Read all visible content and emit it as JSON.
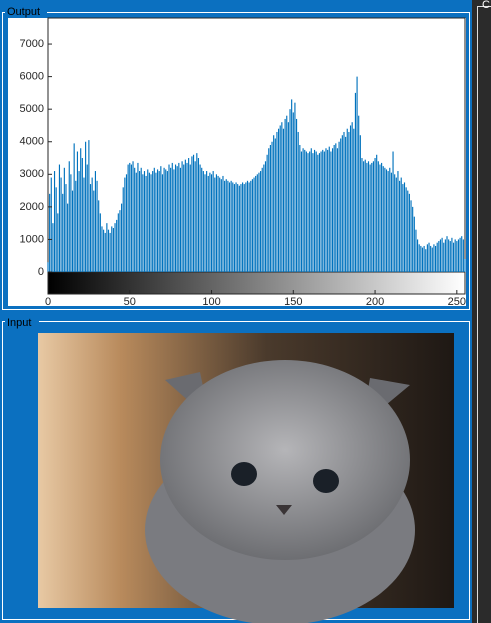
{
  "output_panel": {
    "title": "Output"
  },
  "input_panel": {
    "title": "Input"
  },
  "side_panel": {
    "title": "C"
  },
  "chart_data": {
    "type": "bar",
    "color": "#0072bd",
    "xlim": [
      0,
      255
    ],
    "xticks": [
      0,
      50,
      100,
      150,
      200,
      250
    ],
    "ylim": [
      0,
      7800
    ],
    "yticks": [
      0,
      1000,
      2000,
      3000,
      4000,
      5000,
      6000,
      7000
    ],
    "values": [
      300,
      2400,
      2900,
      1500,
      3100,
      2600,
      1800,
      3300,
      2900,
      2400,
      3200,
      2700,
      2100,
      3400,
      3000,
      2500,
      3950,
      2800,
      3700,
      3100,
      3800,
      3500,
      2900,
      4000,
      3300,
      4050,
      2700,
      2900,
      2500,
      3100,
      2800,
      2200,
      1800,
      1400,
      1300,
      1200,
      1500,
      1300,
      1200,
      1400,
      1350,
      1500,
      1600,
      1800,
      1900,
      2100,
      2600,
      2900,
      3000,
      3300,
      3350,
      3300,
      3400,
      3200,
      3050,
      3350,
      3100,
      3200,
      3000,
      3100,
      2950,
      3150,
      3050,
      3000,
      3100,
      3200,
      3050,
      3150,
      3100,
      3250,
      3000,
      3200,
      3150,
      3100,
      3300,
      3200,
      3350,
      3150,
      3300,
      3250,
      3350,
      3200,
      3400,
      3300,
      3450,
      3350,
      3500,
      3300,
      3550,
      3600,
      3400,
      3650,
      3500,
      3300,
      3200,
      3100,
      3000,
      3100,
      2950,
      3050,
      3000,
      3100,
      2900,
      3000,
      2950,
      2900,
      2850,
      2950,
      2800,
      2850,
      2800,
      2750,
      2800,
      2750,
      2700,
      2750,
      2700,
      2650,
      2700,
      2750,
      2700,
      2750,
      2800,
      2750,
      2800,
      2850,
      2900,
      2950,
      3000,
      3050,
      3100,
      3200,
      3300,
      3400,
      3600,
      3800,
      3900,
      4000,
      4200,
      4100,
      4300,
      4400,
      4500,
      4600,
      4400,
      4700,
      4800,
      4600,
      5000,
      5300,
      4900,
      5200,
      4700,
      4300,
      3900,
      3700,
      3800,
      3750,
      3700,
      3650,
      3700,
      3800,
      3650,
      3750,
      3700,
      3600,
      3650,
      3700,
      3750,
      3700,
      3800,
      3750,
      3850,
      3700,
      3800,
      3900,
      3950,
      3800,
      4000,
      4100,
      4200,
      4300,
      4150,
      4400,
      4300,
      4500,
      4600,
      4400,
      5500,
      6000,
      4800,
      4200,
      3500,
      3400,
      3450,
      3350,
      3400,
      3300,
      3350,
      3400,
      3500,
      3600,
      3400,
      3300,
      3350,
      3250,
      3200,
      3150,
      3100,
      3200,
      3050,
      3700,
      3000,
      2900,
      3100,
      2800,
      2900,
      2700,
      2750,
      2600,
      2500,
      2400,
      2200,
      2000,
      1700,
      1300,
      1000,
      850,
      800,
      750,
      800,
      700,
      850,
      900,
      800,
      750,
      850,
      800,
      900,
      950,
      1000,
      1050,
      900,
      1000,
      1100,
      1000,
      950,
      1050,
      900,
      1000,
      950,
      1000,
      1050,
      1100,
      1000,
      400
    ]
  }
}
